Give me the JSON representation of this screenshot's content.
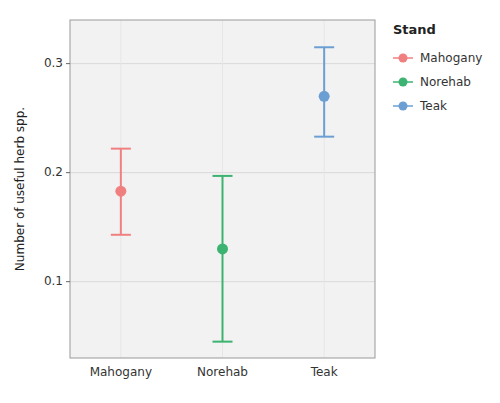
{
  "chart_data": {
    "type": "errorbar",
    "categories": [
      "Mahogany",
      "Norehab",
      "Teak"
    ],
    "values": [
      0.183,
      0.13,
      0.27
    ],
    "ci_low": [
      0.143,
      0.045,
      0.233
    ],
    "ci_high": [
      0.222,
      0.197,
      0.315
    ],
    "colors": [
      "#F08080",
      "#3CB371",
      "#6B9FD4"
    ],
    "ylabel": "Number of useful herb spp.",
    "legend_title": "Stand",
    "legend_labels": [
      "Mahogany",
      "Norehab",
      "Teak"
    ],
    "legend": "right",
    "ylim": [
      0.03,
      0.34
    ],
    "yticks": [
      0.1,
      0.2,
      0.3
    ],
    "grid": true
  }
}
